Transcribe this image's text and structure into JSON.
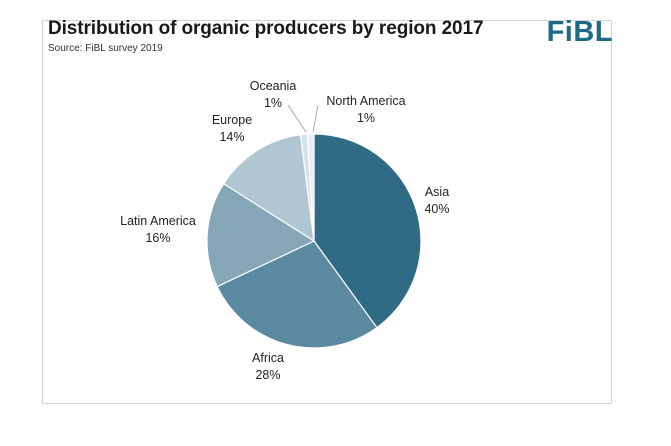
{
  "header": {
    "title": "Distribution of organic producers by region 2017",
    "source": "Source: FiBL survey 2019",
    "logo": "FiBL"
  },
  "colors": {
    "Asia": "#2f6b85",
    "Africa": "#5a89a0",
    "Latin America": "#84a6b7",
    "Europe": "#b0c6d2",
    "Oceania": "#d5e1e7",
    "North America": "#e6eef2",
    "logo": "#1e6a86"
  },
  "chart_data": {
    "type": "pie",
    "title": "Distribution of organic producers by region 2017",
    "slices": [
      {
        "label": "Asia",
        "value": 40,
        "value_label": "40%"
      },
      {
        "label": "Africa",
        "value": 28,
        "value_label": "28%"
      },
      {
        "label": "Latin America",
        "value": 16,
        "value_label": "16%"
      },
      {
        "label": "Europe",
        "value": 14,
        "value_label": "14%"
      },
      {
        "label": "Oceania",
        "value": 1,
        "value_label": "1%"
      },
      {
        "label": "North America",
        "value": 1,
        "value_label": "1%"
      }
    ]
  }
}
